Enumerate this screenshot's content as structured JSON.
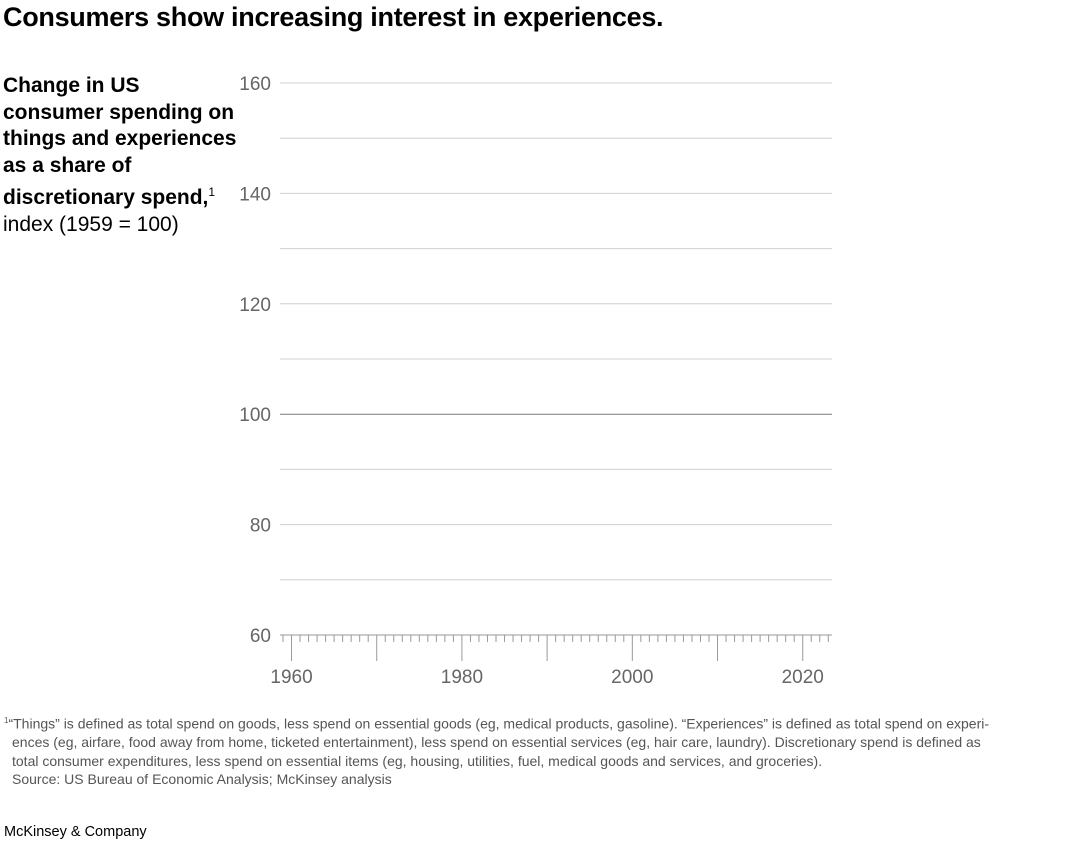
{
  "title": "Consumers show increasing interest in experiences.",
  "subtitle": {
    "bold": "Change in US consumer spending on things and experiences as a share of discretionary spend,",
    "superscript": "1",
    "unit": "index (1959 = 100)"
  },
  "chart_data": {
    "type": "line",
    "title": "",
    "xlabel": "",
    "ylabel": "index (1959 = 100)",
    "xlim": [
      1959,
      2023
    ],
    "ylim": [
      60,
      160
    ],
    "x_ticks": [
      1960,
      1980,
      2000,
      2020
    ],
    "x_tick_labels": [
      "1960",
      "1980",
      "2000",
      "2020"
    ],
    "y_ticks": [
      60,
      80,
      100,
      120,
      140,
      160
    ],
    "y_tick_labels": [
      "60",
      "80",
      "100",
      "120",
      "140",
      "160"
    ],
    "gridlines_every": 10,
    "baseline": 100,
    "grid": true,
    "series": [],
    "colors": {
      "grid": "#d0d0d0",
      "baseline": "#7a7a7a",
      "axis": "#9a9a9a",
      "tick_text": "#666666"
    }
  },
  "footnote": {
    "superscript": "1",
    "lines": [
      "“Things” is defined as total spend on goods, less spend on essential goods (eg, medical products, gasoline). “Experiences” is defined as total spend on experi-",
      "ences (eg, airfare, food away from home, ticketed entertainment), less spend on essential services (eg, hair care, laundry). Discretionary spend is defined as",
      "total consumer expenditures, less spend on essential items (eg, housing, utilities, fuel, medical goods and services, and groceries).",
      "Source: US Bureau of Economic Analysis; McKinsey analysis"
    ]
  },
  "brand": "McKinsey & Company"
}
